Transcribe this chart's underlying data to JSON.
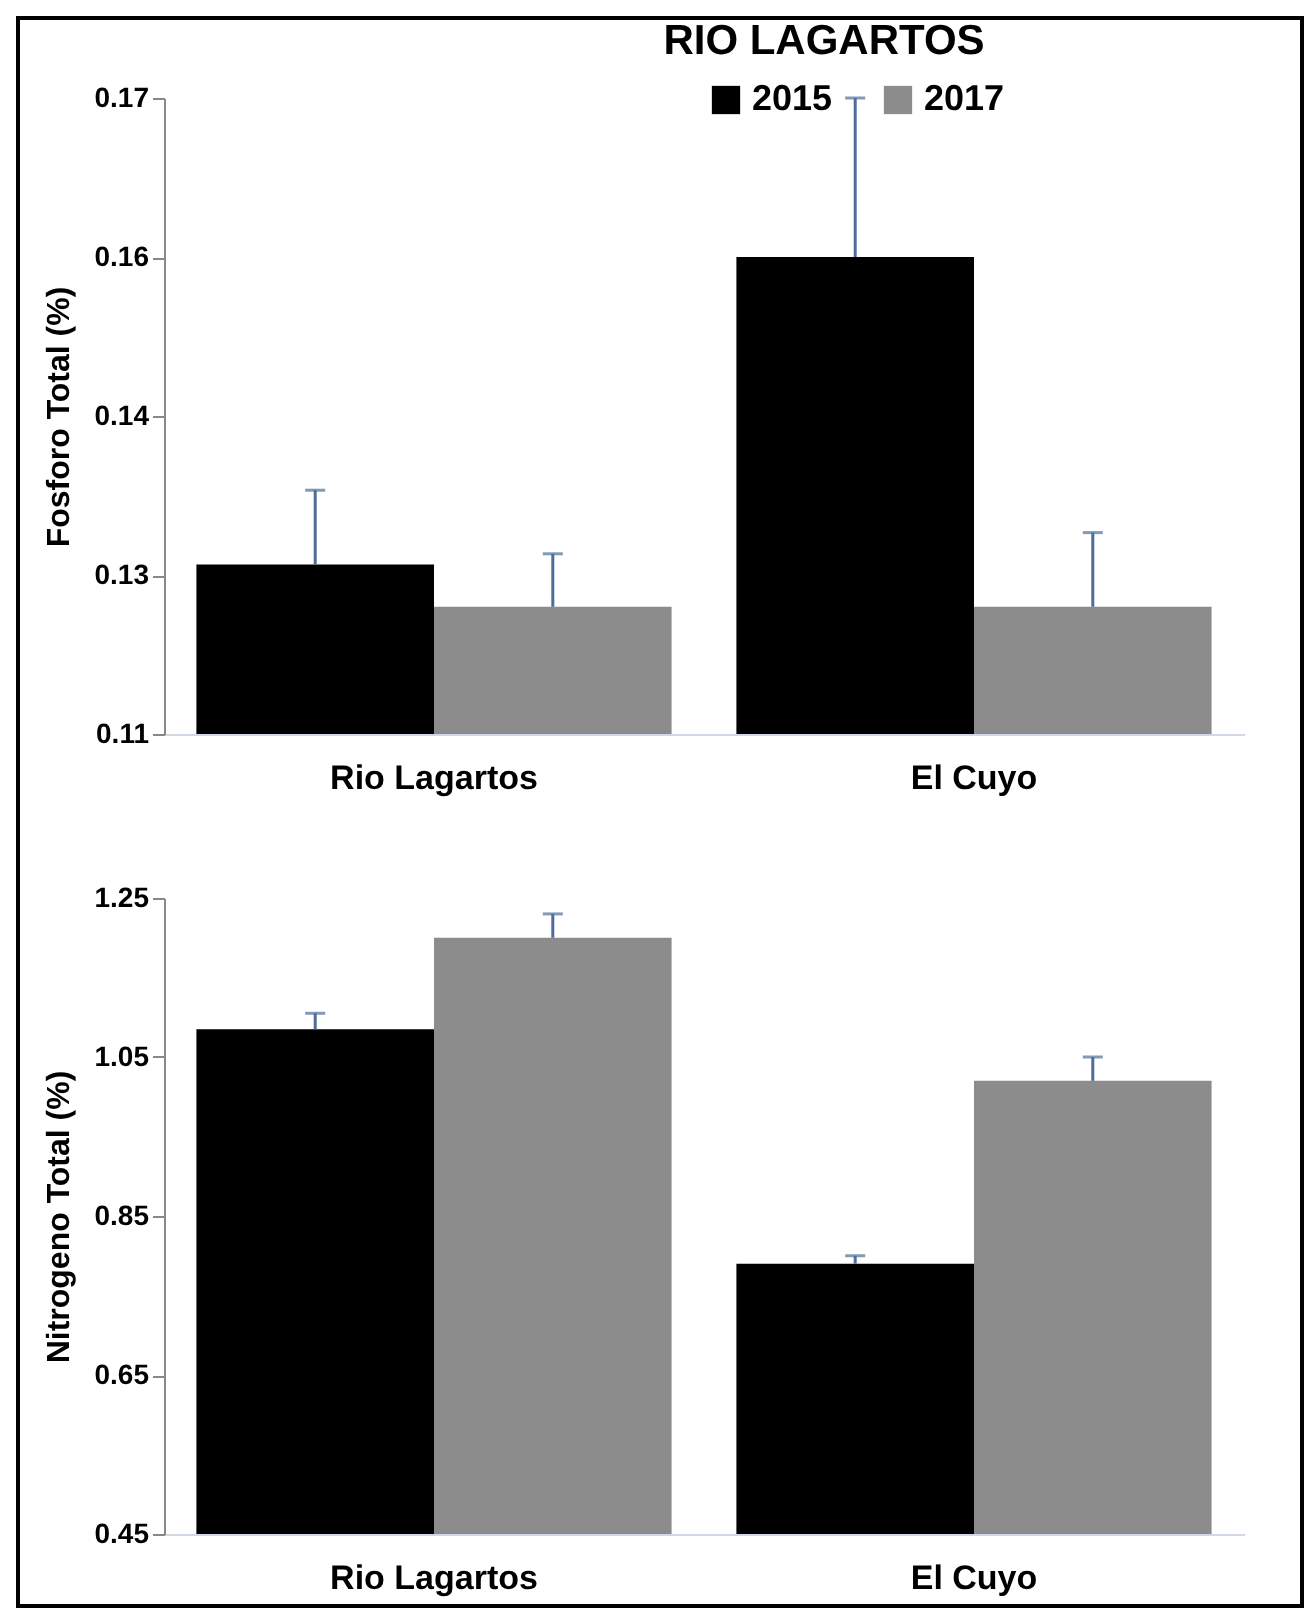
{
  "chart_data": [
    {
      "type": "bar",
      "title": "RIO LAGARTOS",
      "ylabel": "Fosforo Total (%)",
      "categories": [
        "Rio Lagartos",
        "El Cuyo"
      ],
      "series": [
        {
          "name": "2015",
          "color": "#000000",
          "values": [
            0.126,
            0.155
          ],
          "errors": [
            [
              0.126,
              0.133
            ],
            [
              0.155,
              0.17
            ]
          ]
        },
        {
          "name": "2017",
          "color": "#8c8c8c",
          "values": [
            0.122,
            0.122
          ],
          "errors": [
            [
              0.122,
              0.127
            ],
            [
              0.122,
              0.129
            ]
          ]
        }
      ],
      "ylim": [
        0.11,
        0.17
      ],
      "yticks": [
        0.11,
        {
          "value": 0.125,
          "label": "0.13"
        },
        0.14,
        {
          "value": 0.155,
          "label": "0.16"
        },
        0.17
      ],
      "grid": false,
      "legend": "top right"
    },
    {
      "type": "bar",
      "ylabel": "Nitrogeno Total (%)",
      "categories": [
        "Rio Lagartos",
        "El Cuyo"
      ],
      "series": [
        {
          "color": "#000000",
          "values": [
            1.085,
            0.79
          ],
          "errors": [
            [
              1.085,
              1.105
            ],
            [
              0.79,
              0.8
            ]
          ]
        },
        {
          "color": "#8c8c8c",
          "values": [
            1.2,
            1.02
          ],
          "errors": [
            [
              1.2,
              1.23
            ],
            [
              1.02,
              1.05
            ]
          ]
        }
      ],
      "ylim": [
        0.45,
        1.25
      ],
      "yticks": [
        0.45,
        0.65,
        0.85,
        1.05,
        1.25
      ],
      "grid": false,
      "legend": false
    }
  ]
}
